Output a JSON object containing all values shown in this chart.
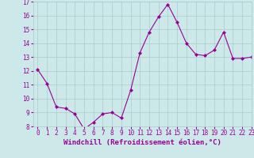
{
  "x": [
    0,
    1,
    2,
    3,
    4,
    5,
    6,
    7,
    8,
    9,
    10,
    11,
    12,
    13,
    14,
    15,
    16,
    17,
    18,
    19,
    20,
    21,
    22,
    23
  ],
  "y": [
    12.1,
    11.1,
    9.4,
    9.3,
    8.9,
    7.8,
    8.3,
    8.9,
    9.0,
    8.6,
    10.6,
    13.3,
    14.8,
    15.9,
    16.8,
    15.5,
    14.0,
    13.2,
    13.1,
    13.5,
    14.8,
    12.9,
    12.9,
    13.0
  ],
  "line_color": "#990099",
  "marker": "D",
  "marker_size": 2,
  "bg_color": "#cce8e8",
  "grid_color": "#aacccc",
  "xlabel": "Windchill (Refroidissement éolien,°C)",
  "ylim": [
    8,
    17
  ],
  "xlim": [
    -0.5,
    23
  ],
  "yticks": [
    8,
    9,
    10,
    11,
    12,
    13,
    14,
    15,
    16,
    17
  ],
  "xticks": [
    0,
    1,
    2,
    3,
    4,
    5,
    6,
    7,
    8,
    9,
    10,
    11,
    12,
    13,
    14,
    15,
    16,
    17,
    18,
    19,
    20,
    21,
    22,
    23
  ],
  "tick_fontsize": 5.5,
  "xlabel_fontsize": 6.5,
  "tick_color": "#990099",
  "label_color": "#990099"
}
